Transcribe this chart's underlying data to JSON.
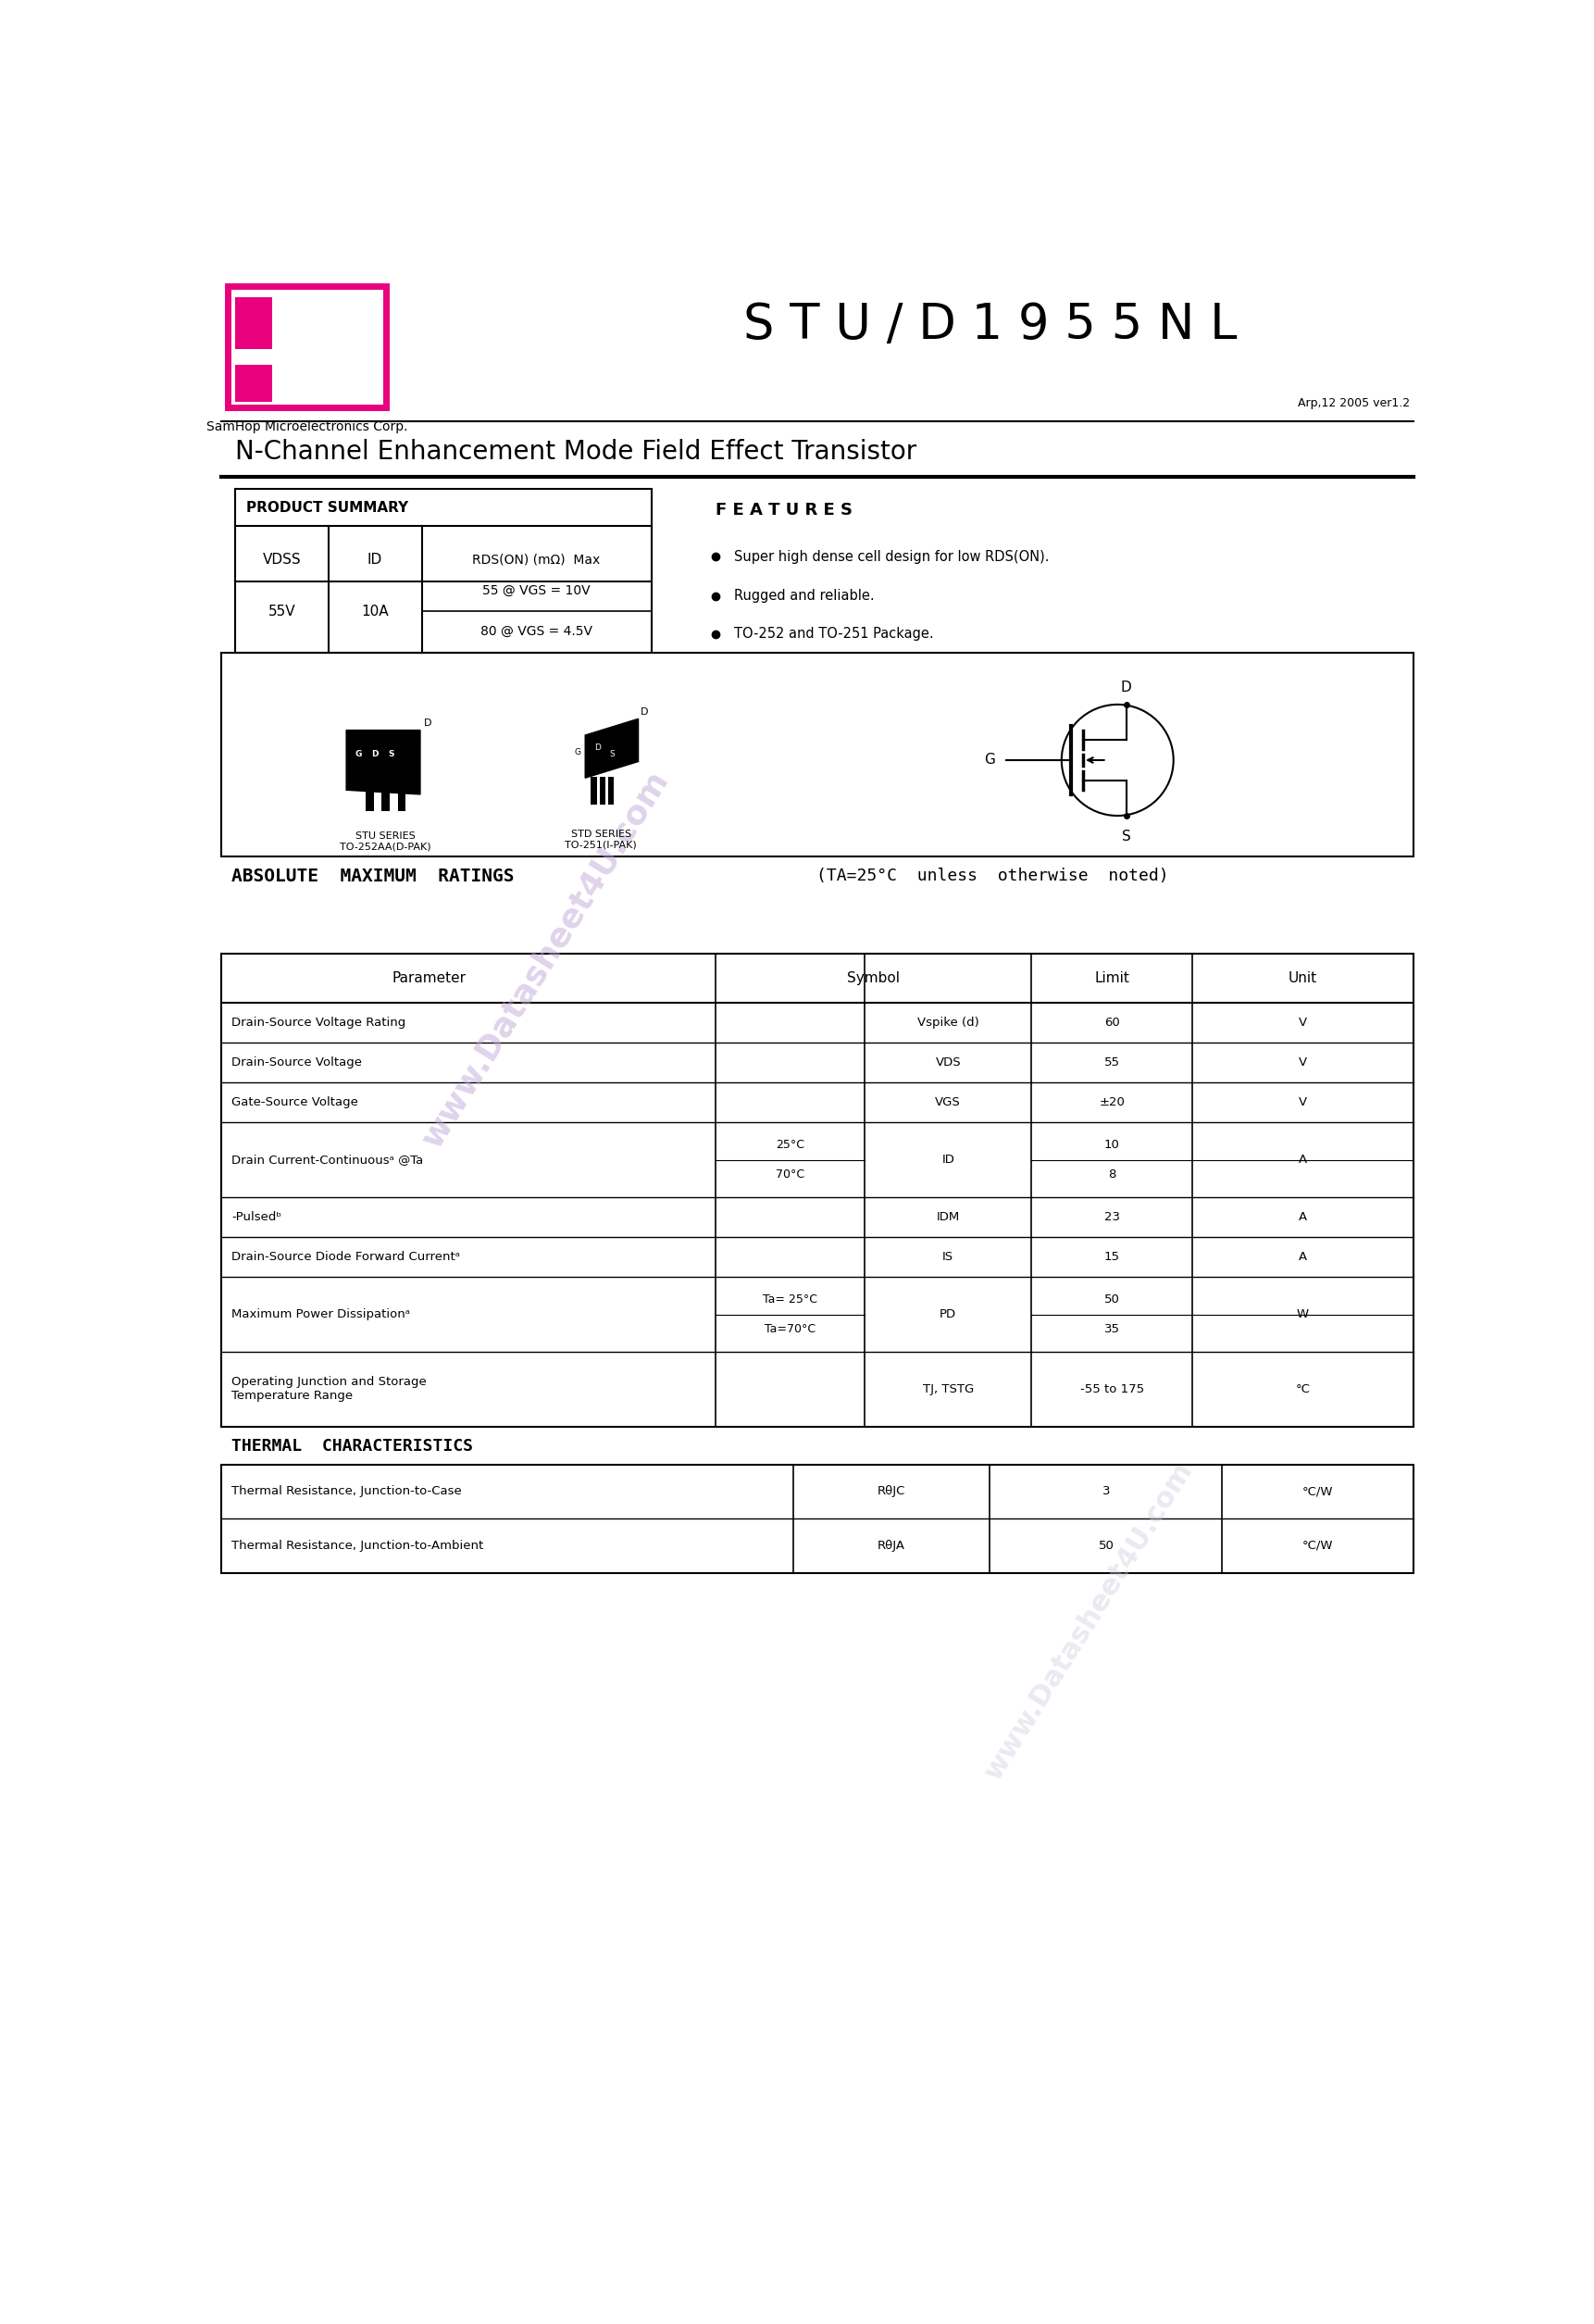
{
  "page_width": 17.22,
  "page_height": 25.1,
  "bg_color": "#ffffff",
  "title_part": "S T U / D 1 9 5 5 N L",
  "company": "SamHop Microelectronics Corp.",
  "version": "Arp,12 2005 ver1.2",
  "subtitle": "N-Channel Enhancement Mode Field Effect Transistor",
  "watermark_text": "www.Datasheet4U.com",
  "product_summary_title": "PRODUCT SUMMARY",
  "features_title": "F E A T U R E S",
  "features": [
    "Super high dense cell design for low RDS(ON).",
    "Rugged and reliable.",
    "TO-252 and TO-251 Package."
  ],
  "stu_label": "STU SERIES\nTO-252AA(D-PAK)",
  "std_label": "STD SERIES\nTO-251(I-PAK)",
  "abs_title": "ABSOLUTE  MAXIMUM  RATINGS",
  "abs_note": "(TA=25°C  unless  otherwise  noted)",
  "thermal_title": "THERMAL  CHARACTERISTICS",
  "thermal_rows": [
    [
      "Thermal Resistance, Junction-to-Case",
      "RθJC",
      "3",
      "°C/W"
    ],
    [
      "Thermal Resistance, Junction-to-Ambient",
      "RθJA",
      "50",
      "°C/W"
    ]
  ],
  "logo_color": "#E8007D"
}
